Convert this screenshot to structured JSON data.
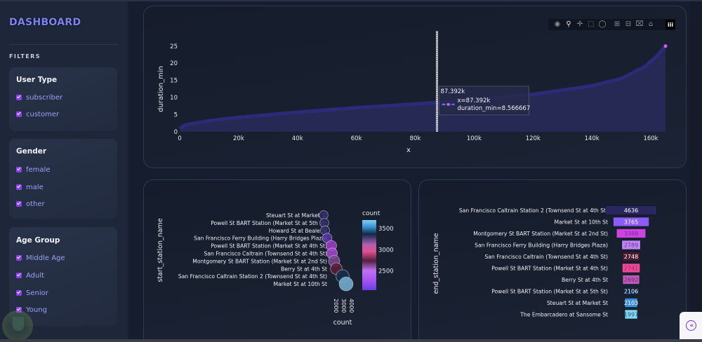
{
  "sidebar": {
    "title": "DASHBOARD",
    "filters_label": "FILTERS",
    "groups": [
      {
        "title": "User Type",
        "options": [
          {
            "label": "subscriber",
            "checked": true
          },
          {
            "label": "customer",
            "checked": true
          }
        ]
      },
      {
        "title": "Gender",
        "options": [
          {
            "label": "female",
            "checked": true
          },
          {
            "label": "male",
            "checked": true
          },
          {
            "label": "other",
            "checked": true
          }
        ]
      },
      {
        "title": "Age Group",
        "options": [
          {
            "label": "Middle Age",
            "checked": true
          },
          {
            "label": "Adult",
            "checked": true
          },
          {
            "label": "Senior",
            "checked": true
          },
          {
            "label": "Young",
            "checked": true
          }
        ]
      }
    ]
  },
  "modebar": {
    "icons": [
      "camera-icon",
      "zoom-icon",
      "pan-icon",
      "box-select-icon",
      "lasso-select-icon",
      "zoom-in-icon",
      "zoom-out-icon",
      "autoscale-icon",
      "reset-axes-icon"
    ],
    "logo": "plotly-logo"
  },
  "collapse_button": {
    "icon": "double-chevron-left-icon",
    "glyph": "«"
  },
  "chart_data": [
    {
      "type": "area",
      "title": "",
      "xlabel": "x",
      "ylabel": "duration_min",
      "xlim": [
        0,
        165000
      ],
      "ylim": [
        0,
        27
      ],
      "x_ticks": [
        "0",
        "20k",
        "40k",
        "60k",
        "80k",
        "100k",
        "120k",
        "140k",
        "160k"
      ],
      "x_tick_values": [
        0,
        20000,
        40000,
        60000,
        80000,
        100000,
        120000,
        140000,
        160000
      ],
      "y_ticks": [
        "0",
        "5",
        "10",
        "15",
        "20",
        "25"
      ],
      "y_tick_values": [
        0,
        5,
        10,
        15,
        20,
        25
      ],
      "series": [
        {
          "name": "duration_min",
          "x": [
            0,
            2000,
            10000,
            20000,
            40000,
            60000,
            80000,
            87392,
            100000,
            120000,
            140000,
            150000,
            158000,
            162000,
            165000
          ],
          "y": [
            1.0,
            2.0,
            3.2,
            4.2,
            5.7,
            7.0,
            8.1,
            8.566667,
            9.3,
            10.9,
            13.4,
            15.5,
            19.0,
            22.0,
            25.0
          ]
        }
      ],
      "hover": {
        "header": "87.392k",
        "line1": "x=87.392k",
        "line2": "duration_min=8.566667",
        "x": 87392,
        "y": 8.566667
      },
      "grid": false
    },
    {
      "type": "scatter",
      "xlabel": "count",
      "ylabel": "start_station_name",
      "x_ticks": [
        "2000",
        "3000",
        "4000"
      ],
      "x_tick_values": [
        2000,
        3000,
        4000
      ],
      "xlim": [
        1500,
        4800
      ],
      "categories": [
        "Steuart St at Market St",
        "Powell St BART Station (Market St at 5th St)",
        "Howard St at Beale St",
        "San Francisco Ferry Building (Harry Bridges Plaza)",
        "Powell St BART Station (Market St at 4th St)",
        "San Francisco Caltrain (Townsend St at 4th St)",
        "Montgomery St BART Station (Market St at 2nd St)",
        "Berry St at 4th St",
        "San Francisco Caltrain Station 2  (Townsend St at 4th St)",
        "Market St at 10th St"
      ],
      "values": [
        2050,
        2100,
        2150,
        2300,
        2600,
        2650,
        2800,
        2950,
        3400,
        3650
      ],
      "colorbar": {
        "title": "count",
        "ticks": [
          "2500",
          "3000",
          "3500"
        ],
        "tick_values": [
          2500,
          3000,
          3500
        ],
        "range": [
          2050,
          3700
        ]
      }
    },
    {
      "type": "bar",
      "orientation": "horizontal",
      "ylabel": "end_station_name",
      "categories": [
        "San Francisco Caltrain Station 2  (Townsend St at 4th St)",
        "Market St at 10th St",
        "Montgomery St BART Station (Market St at 2nd St)",
        "San Francisco Ferry Building (Harry Bridges Plaza)",
        "San Francisco Caltrain (Townsend St at 4th St)",
        "Powell St BART Station (Market St at 4th St)",
        "Berry St at 4th St",
        "Powell St BART Station (Market St at 5th St)",
        "Steuart St at Market St",
        "The Embarcadero at Sansome St"
      ],
      "values": [
        4636,
        3765,
        3388,
        2789,
        2748,
        2741,
        2692,
        2106,
        2103,
        1997
      ],
      "labels": [
        "4636",
        "3765",
        "3388",
        "2789",
        "2748",
        "2741",
        "2692",
        "2106",
        "2103",
        "1997"
      ],
      "colors": [
        "#2a2660",
        "#8b5cf6",
        "#cc44e0",
        "#c084f5",
        "#4a1a32",
        "#ec4899",
        "#c05ab8",
        "#0f2845",
        "#3b8fdc",
        "#7fd8f4"
      ],
      "label_colors": [
        "#ffffff",
        "#ffffff",
        "#7a2aa0",
        "#6a3a9a",
        "#ffffff",
        "#9a2a60",
        "#6a2a70",
        "#ffffff",
        "#ffffff",
        "#305a70"
      ]
    }
  ]
}
